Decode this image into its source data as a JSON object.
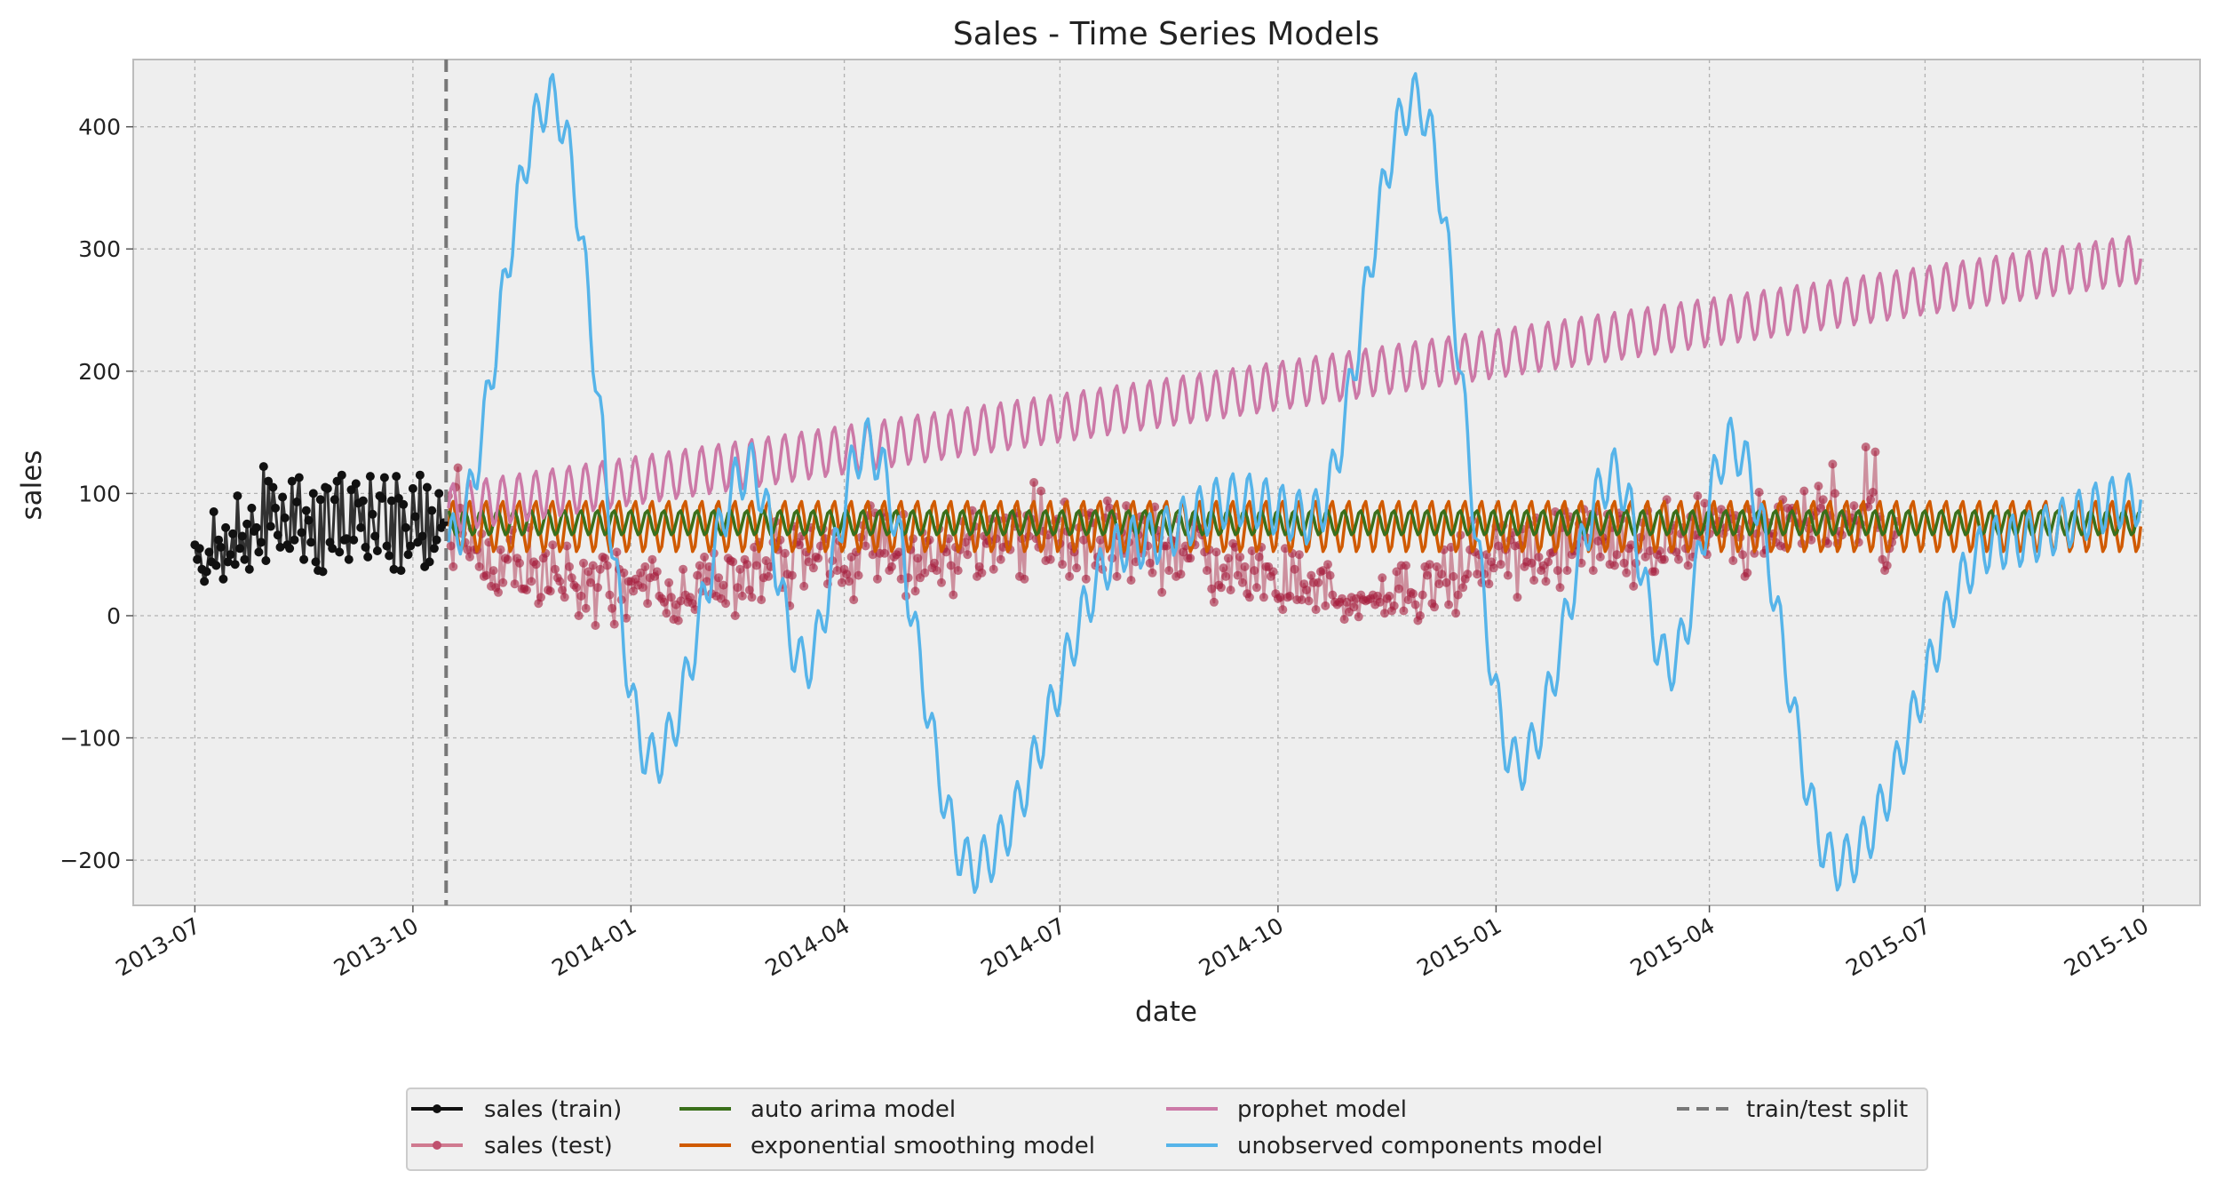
{
  "chart_data": {
    "type": "line",
    "title": "Sales - Time Series Models",
    "xlabel": "date",
    "ylabel": "sales",
    "x_range": [
      "2013-06-05",
      "2015-10-25"
    ],
    "ylim": [
      -237,
      455
    ],
    "x_ticks": [
      "2013-07",
      "2013-10",
      "2014-01",
      "2014-04",
      "2014-07",
      "2014-10",
      "2015-01",
      "2015-04",
      "2015-07",
      "2015-10"
    ],
    "y_ticks": [
      -200,
      -100,
      0,
      100,
      200,
      300,
      400
    ],
    "y_tick_labels": [
      "−200",
      "−100",
      "0",
      "100",
      "200",
      "300",
      "400"
    ],
    "grid": true,
    "legend_position": "below",
    "split_date": "2013-10-15",
    "series": [
      {
        "name": "sales (train)",
        "color": "#111111",
        "marker": "dot",
        "x_range": [
          "2013-07-01",
          "2013-10-15"
        ],
        "values": [
          58,
          46,
          55,
          38,
          28,
          36,
          52,
          44,
          85,
          41,
          62,
          56,
          30,
          72,
          44,
          50,
          67,
          42,
          98,
          55,
          65,
          46,
          75,
          38,
          88,
          69,
          72,
          52,
          60,
          122,
          45,
          110,
          73,
          105,
          88,
          66,
          56,
          97,
          80,
          58,
          55,
          110,
          62,
          93,
          113,
          68,
          46,
          86,
          78,
          60,
          100,
          44,
          37,
          95,
          36,
          105,
          104,
          60,
          55,
          95,
          110,
          52,
          115,
          62,
          63,
          46,
          103,
          62,
          108,
          92,
          72,
          94,
          56,
          48,
          114,
          83,
          65,
          53,
          98,
          96,
          113,
          57,
          49,
          94,
          38,
          114,
          96,
          37,
          91,
          72,
          50,
          57,
          104,
          81,
          60,
          115,
          65,
          40,
          105,
          44,
          86,
          55,
          62,
          100,
          72,
          76
        ]
      },
      {
        "name": "sales (test)",
        "color": "#a51c3c",
        "marker": "dot",
        "x_range": [
          "2013-10-16",
          "2015-09-30"
        ],
        "values": [
          98,
          57,
          40,
          105,
          121,
          88,
          67,
          60,
          54,
          48,
          71,
          54,
          54,
          40,
          67,
          32,
          33,
          60,
          24,
          37,
          23,
          19,
          54,
          27,
          47,
          46,
          62,
          70,
          26,
          47,
          43,
          22,
          22,
          21,
          72,
          28,
          44,
          42,
          10,
          15,
          47,
          51,
          21,
          20,
          58,
          38,
          31,
          28,
          21,
          15,
          57,
          40,
          31,
          25,
          23,
          0,
          16,
          43,
          6,
          36,
          27,
          41,
          -8,
          23,
          38,
          48,
          47,
          41,
          17,
          6,
          -7,
          52,
          38,
          13,
          35,
          -2,
          28,
          28,
          20,
          30,
          25,
          35,
          23,
          40,
          10,
          31,
          46,
          32,
          36,
          16,
          14,
          11,
          2,
          27,
          15,
          -3,
          9,
          -4,
          12,
          38,
          17,
          11,
          15,
          10,
          5,
          33,
          41,
          20,
          48,
          28,
          40,
          18,
          51,
          16,
          31,
          14,
          25,
          10,
          47,
          45,
          44,
          0,
          23,
          38,
          16,
          46,
          42,
          21,
          15,
          56,
          41,
          60,
          13,
          31,
          45,
          32,
          40,
          60,
          77,
          54,
          62,
          23,
          51,
          34,
          8,
          33,
          73,
          60,
          58,
          65,
          24,
          52,
          44,
          72,
          39,
          48,
          47,
          57,
          71,
          63,
          26,
          34,
          45,
          68,
          37,
          61,
          27,
          38,
          34,
          28,
          48,
          13,
          52,
          33,
          64,
          74,
          57,
          82,
          90,
          50,
          84,
          30,
          51,
          84,
          51,
          81,
          37,
          40,
          48,
          50,
          52,
          30,
          83,
          16,
          31,
          54,
          63,
          20,
          47,
          31,
          68,
          35,
          61,
          62,
          39,
          43,
          37,
          71,
          27,
          55,
          52,
          63,
          41,
          17,
          56,
          37,
          54,
          77,
          60,
          50,
          65,
          86,
          73,
          32,
          40,
          35,
          65,
          59,
          61,
          79,
          38,
          63,
          78,
          46,
          56,
          80,
          58,
          54,
          82,
          73,
          84,
          32,
          63,
          30,
          82,
          65,
          79,
          109,
          63,
          56,
          102,
          69,
          45,
          66,
          46,
          70,
          77,
          79,
          59,
          42,
          93,
          69,
          32,
          57,
          52,
          39,
          72,
          84,
          62,
          30,
          82,
          84,
          76,
          41,
          48,
          62,
          38,
          80,
          94,
          88,
          47,
          81,
          32,
          65,
          68,
          51,
          90,
          60,
          29,
          72,
          44,
          66,
          81,
          51,
          78,
          57,
          43,
          35,
          89,
          70,
          64,
          19,
          57,
          57,
          37,
          62,
          61,
          32,
          79,
          34,
          52,
          57,
          47,
          47,
          77,
          58,
          73,
          71,
          66,
          52,
          37,
          54,
          22,
          11,
          52,
          25,
          23,
          39,
          32,
          47,
          21,
          59,
          56,
          33,
          48,
          27,
          40,
          18,
          15,
          53,
          37,
          23,
          48,
          56,
          15,
          40,
          40,
          32,
          36,
          18,
          14,
          15,
          5,
          55,
          15,
          16,
          51,
          38,
          13,
          50,
          13,
          26,
          21,
          12,
          33,
          27,
          5,
          27,
          36,
          37,
          8,
          42,
          33,
          17,
          11,
          9,
          11,
          14,
          -3,
          11,
          3,
          15,
          7,
          14,
          -1,
          17,
          13,
          12,
          13,
          14,
          17,
          9,
          16,
          11,
          31,
          2,
          14,
          16,
          4,
          8,
          36,
          22,
          41,
          4,
          41,
          13,
          19,
          18,
          9,
          -4,
          0,
          17,
          40,
          33,
          42,
          10,
          7,
          40,
          26,
          34,
          54,
          27,
          9,
          56,
          32,
          2,
          17,
          66,
          23,
          30,
          34,
          54,
          78,
          52,
          34,
          50,
          27,
          34,
          50,
          26,
          44,
          39,
          73,
          57,
          42,
          74,
          54,
          33,
          62,
          68,
          57,
          15,
          58,
          71,
          40,
          44,
          75,
          43,
          29,
          80,
          48,
          37,
          41,
          28,
          44,
          51,
          52,
          85,
          37,
          23,
          72,
          86,
          37,
          81,
          50,
          53,
          58,
          75,
          43,
          87,
          64,
          77,
          83,
          37,
          85,
          61,
          48,
          64,
          60,
          83,
          42,
          72,
          41,
          50,
          84,
          79,
          43,
          35,
          55,
          58,
          24,
          43,
          54,
          64,
          76,
          48,
          86,
          53,
          36,
          36,
          50,
          53,
          46,
          46,
          95,
          69,
          54,
          74,
          52,
          46,
          67,
          72,
          55,
          41,
          81,
          48,
          66,
          98,
          64,
          72,
          92,
          50,
          67,
          85,
          74,
          70,
          77,
          87,
          67,
          72,
          84,
          79,
          45,
          82,
          71,
          64,
          50,
          32,
          35,
          87,
          77,
          51,
          67,
          101,
          80,
          51,
          54,
          76,
          65,
          67,
          60,
          89,
          57,
          95,
          56,
          88,
          80,
          88,
          86,
          76,
          75,
          59,
          102,
          77,
          71,
          62,
          82,
          85,
          106,
          88,
          95,
          61,
          59,
          82,
          124,
          100,
          59,
          69,
          66,
          83,
          75,
          77,
          80,
          90,
          78,
          60,
          75,
          89,
          138,
          89,
          95,
          101,
          134,
          72,
          81,
          46,
          37,
          41,
          55,
          60,
          66,
          77
        ]
      },
      {
        "name": "auto arima model",
        "color": "#3a6f1a",
        "level": 76,
        "weekly_amplitude": 10
      },
      {
        "name": "exponential smoothing model",
        "color": "#d05a00",
        "level": 73,
        "weekly_amplitude": 21
      },
      {
        "name": "prophet model",
        "color": "#cc79a7",
        "start_level": 88,
        "end_level": 292,
        "weekly_amplitude": 20
      },
      {
        "name": "unobserved components model",
        "color": "#56b4e9",
        "peaks": [
          [
            "2013-11-28",
            422
          ],
          [
            "2014-11-28",
            422
          ]
        ],
        "troughs": [
          [
            "2014-01-10",
            -118
          ],
          [
            "2014-05-25",
            -205
          ],
          [
            "2015-01-10",
            -122
          ],
          [
            "2015-05-25",
            -203
          ]
        ],
        "local_peaks": [
          [
            "2014-02-20",
            120
          ],
          [
            "2014-04-10",
            140
          ],
          [
            "2015-02-20",
            115
          ],
          [
            "2015-04-10",
            140
          ]
        ],
        "end_level": 95
      },
      {
        "name": "train/test split",
        "color": "#777777",
        "style": "dashed",
        "x": "2013-10-15"
      }
    ]
  }
}
